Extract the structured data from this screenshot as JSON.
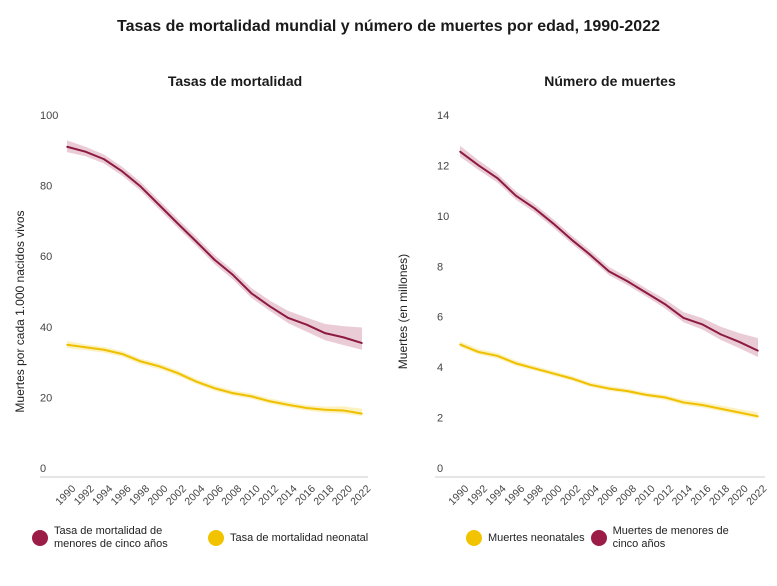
{
  "title": "Tasas de mortalidad mundial y número de muertes por edad, 1990-2022",
  "colors": {
    "under5": "#9b1d47",
    "under5_band": "#e6c3d0",
    "neonatal": "#f2c300",
    "neonatal_band": "#fbefb5",
    "axis": "#cccccc",
    "tick": "#444444"
  },
  "chart_data": [
    {
      "type": "line",
      "title": "Tasas de mortalidad",
      "xlabel": "",
      "ylabel": "Muertes por cada 1.000 nacidos vivos",
      "ylim": [
        0,
        100
      ],
      "yticks": [
        "0",
        "20",
        "40",
        "60",
        "80",
        "100"
      ],
      "x": [
        1990,
        1992,
        1994,
        1996,
        1998,
        2000,
        2002,
        2004,
        2006,
        2008,
        2010,
        2012,
        2014,
        2016,
        2018,
        2020,
        2022
      ],
      "xtick_labels": [
        "1990",
        "1992",
        "1994",
        "1996",
        "1998",
        "2000",
        "2002",
        "2004",
        "2006",
        "2008",
        "2010",
        "2012",
        "2014",
        "2016",
        "2018",
        "2020",
        "2022"
      ],
      "grid": false,
      "legend_placement": "bottom",
      "series": [
        {
          "name": "Tasa de mortalidad de menores de cinco años",
          "key": "under5",
          "values": [
            91,
            89.6,
            87.5,
            84,
            79.7,
            74.5,
            69.3,
            64.2,
            59,
            54.7,
            49.5,
            45.8,
            42.5,
            40.6,
            38.2,
            37,
            35.4
          ],
          "lower": [
            89.5,
            88.3,
            86.3,
            82.8,
            78.5,
            73.3,
            68.1,
            63,
            57.8,
            53.4,
            48.2,
            44.5,
            41,
            38.6,
            36.2,
            34.8,
            33.5
          ],
          "upper": [
            92.8,
            91,
            88.8,
            85.3,
            81,
            75.8,
            70.6,
            65.5,
            60.3,
            56,
            51,
            47.4,
            44.5,
            42.6,
            40.8,
            40.2,
            39.8
          ]
        },
        {
          "name": "Tasa de mortalidad neonatal",
          "key": "neonatal",
          "values": [
            34.9,
            34.2,
            33.5,
            32.3,
            30.2,
            28.8,
            26.9,
            24.5,
            22.6,
            21.2,
            20.3,
            18.9,
            17.9,
            17,
            16.5,
            16.3,
            15.4
          ],
          "lower": [
            34,
            33.4,
            32.7,
            31.5,
            29.4,
            28,
            26.1,
            23.8,
            21.9,
            20.5,
            19.6,
            18.2,
            17.2,
            16.3,
            15.7,
            15.4,
            14.7
          ],
          "upper": [
            36,
            35,
            34.3,
            33.1,
            31,
            29.6,
            27.7,
            25.3,
            23.4,
            22,
            21.1,
            19.7,
            18.7,
            17.8,
            17.4,
            17.5,
            16.8
          ]
        }
      ]
    },
    {
      "type": "line",
      "title": "Número de muertes",
      "xlabel": "",
      "ylabel": "Muertes (en millones)",
      "ylim": [
        0,
        14
      ],
      "yticks": [
        "0",
        "2",
        "4",
        "6",
        "8",
        "10",
        "12",
        "14"
      ],
      "x": [
        1990,
        1992,
        1994,
        1996,
        1998,
        2000,
        2002,
        2004,
        2006,
        2008,
        2010,
        2012,
        2014,
        2016,
        2018,
        2020,
        2022
      ],
      "xtick_labels": [
        "1990",
        "1992",
        "1994",
        "1996",
        "1998",
        "2000",
        "2002",
        "2004",
        "2006",
        "2008",
        "2010",
        "2012",
        "2014",
        "2016",
        "2018",
        "2020",
        "2022"
      ],
      "grid": false,
      "legend_placement": "bottom",
      "series": [
        {
          "name": "Muertes de menores de cinco años",
          "key": "under5",
          "values": [
            12.55,
            12.0,
            11.5,
            10.8,
            10.3,
            9.7,
            9.05,
            8.45,
            7.8,
            7.4,
            6.95,
            6.5,
            5.95,
            5.7,
            5.3,
            5.0,
            4.65
          ],
          "lower": [
            12.35,
            11.82,
            11.33,
            10.64,
            10.14,
            9.54,
            8.9,
            8.3,
            7.65,
            7.25,
            6.8,
            6.33,
            5.78,
            5.5,
            5.08,
            4.75,
            4.4
          ],
          "upper": [
            12.78,
            12.2,
            11.68,
            10.97,
            10.47,
            9.87,
            9.22,
            8.62,
            7.97,
            7.57,
            7.12,
            6.7,
            6.18,
            5.95,
            5.6,
            5.35,
            5.15
          ]
        },
        {
          "name": "Muertes neonatales",
          "key": "neonatal",
          "values": [
            4.9,
            4.6,
            4.45,
            4.15,
            3.95,
            3.75,
            3.55,
            3.3,
            3.15,
            3.05,
            2.9,
            2.8,
            2.6,
            2.5,
            2.35,
            2.2,
            2.05
          ],
          "lower": [
            4.8,
            4.5,
            4.35,
            4.05,
            3.86,
            3.66,
            3.46,
            3.21,
            3.06,
            2.96,
            2.81,
            2.7,
            2.5,
            2.4,
            2.25,
            2.1,
            1.95
          ],
          "upper": [
            5.02,
            4.72,
            4.56,
            4.26,
            4.05,
            3.85,
            3.65,
            3.4,
            3.25,
            3.15,
            3.0,
            2.9,
            2.71,
            2.62,
            2.48,
            2.34,
            2.2
          ]
        }
      ]
    }
  ],
  "legends": [
    [
      {
        "label": "Tasa de mortalidad de menores de cinco años",
        "key": "under5"
      },
      {
        "label": "Tasa de mortalidad neonatal",
        "key": "neonatal"
      }
    ],
    [
      {
        "label": "Muertes neonatales",
        "key": "neonatal"
      },
      {
        "label": "Muertes de menores de cinco años",
        "key": "under5"
      }
    ]
  ]
}
